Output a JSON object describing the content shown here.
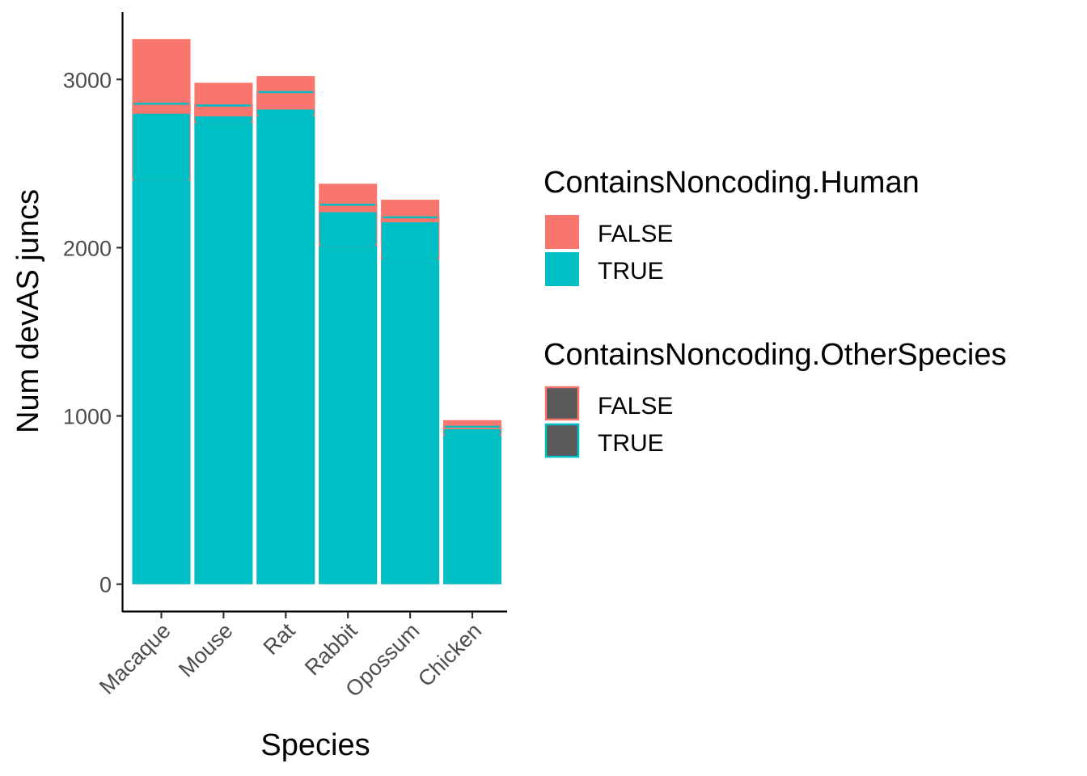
{
  "chart_data": {
    "type": "bar",
    "title": "",
    "xlabel": "Species",
    "ylabel": "Num devAS juncs",
    "ylim": [
      -160,
      3400
    ],
    "yticks": [
      0,
      1000,
      2000,
      3000
    ],
    "ytick_labels": [
      "0",
      "1000",
      "2000",
      "3000"
    ],
    "categories": [
      "Macaque",
      "Mouse",
      "Rat",
      "Rabbit",
      "Opossum",
      "Chicken"
    ],
    "series": [
      {
        "name": "TRUE",
        "legend": "ContainsNoncoding.Human",
        "values": [
          3240,
          2980,
          3020,
          2380,
          2285,
          975
        ]
      },
      {
        "name": "FALSE",
        "legend": "ContainsNoncoding.Human",
        "values": [
          0,
          0,
          0,
          0,
          0,
          0
        ]
      }
    ],
    "outline_series": [
      {
        "name": "FALSE",
        "legend": "ContainsNoncoding.OtherSpecies",
        "top": [
          2860,
          2850,
          2930,
          2260,
          2185,
          940
        ],
        "bottom": [
          2400,
          2740,
          2780,
          2010,
          1930,
          880
        ]
      },
      {
        "name": "TRUE",
        "legend": "ContainsNoncoding.OtherSpecies",
        "top": [
          2790,
          2775,
          2815,
          2205,
          2145,
          915
        ],
        "bottom": [
          0,
          0,
          0,
          0,
          0,
          0
        ]
      }
    ],
    "legends": [
      {
        "title": "ContainsNoncoding.Human",
        "items": [
          {
            "label": "FALSE",
            "color": "#F8766D"
          },
          {
            "label": "TRUE",
            "color": "#00BFC4"
          }
        ]
      },
      {
        "title": "ContainsNoncoding.OtherSpecies",
        "items": [
          {
            "label": "FALSE",
            "fill": "#595959",
            "outline": "#F8766D"
          },
          {
            "label": "TRUE",
            "fill": "#595959",
            "outline": "#00BFC4"
          }
        ]
      }
    ],
    "legend_position": "right",
    "grid": false,
    "colors": {
      "false": "#F8766D",
      "true": "#00BFC4"
    }
  }
}
